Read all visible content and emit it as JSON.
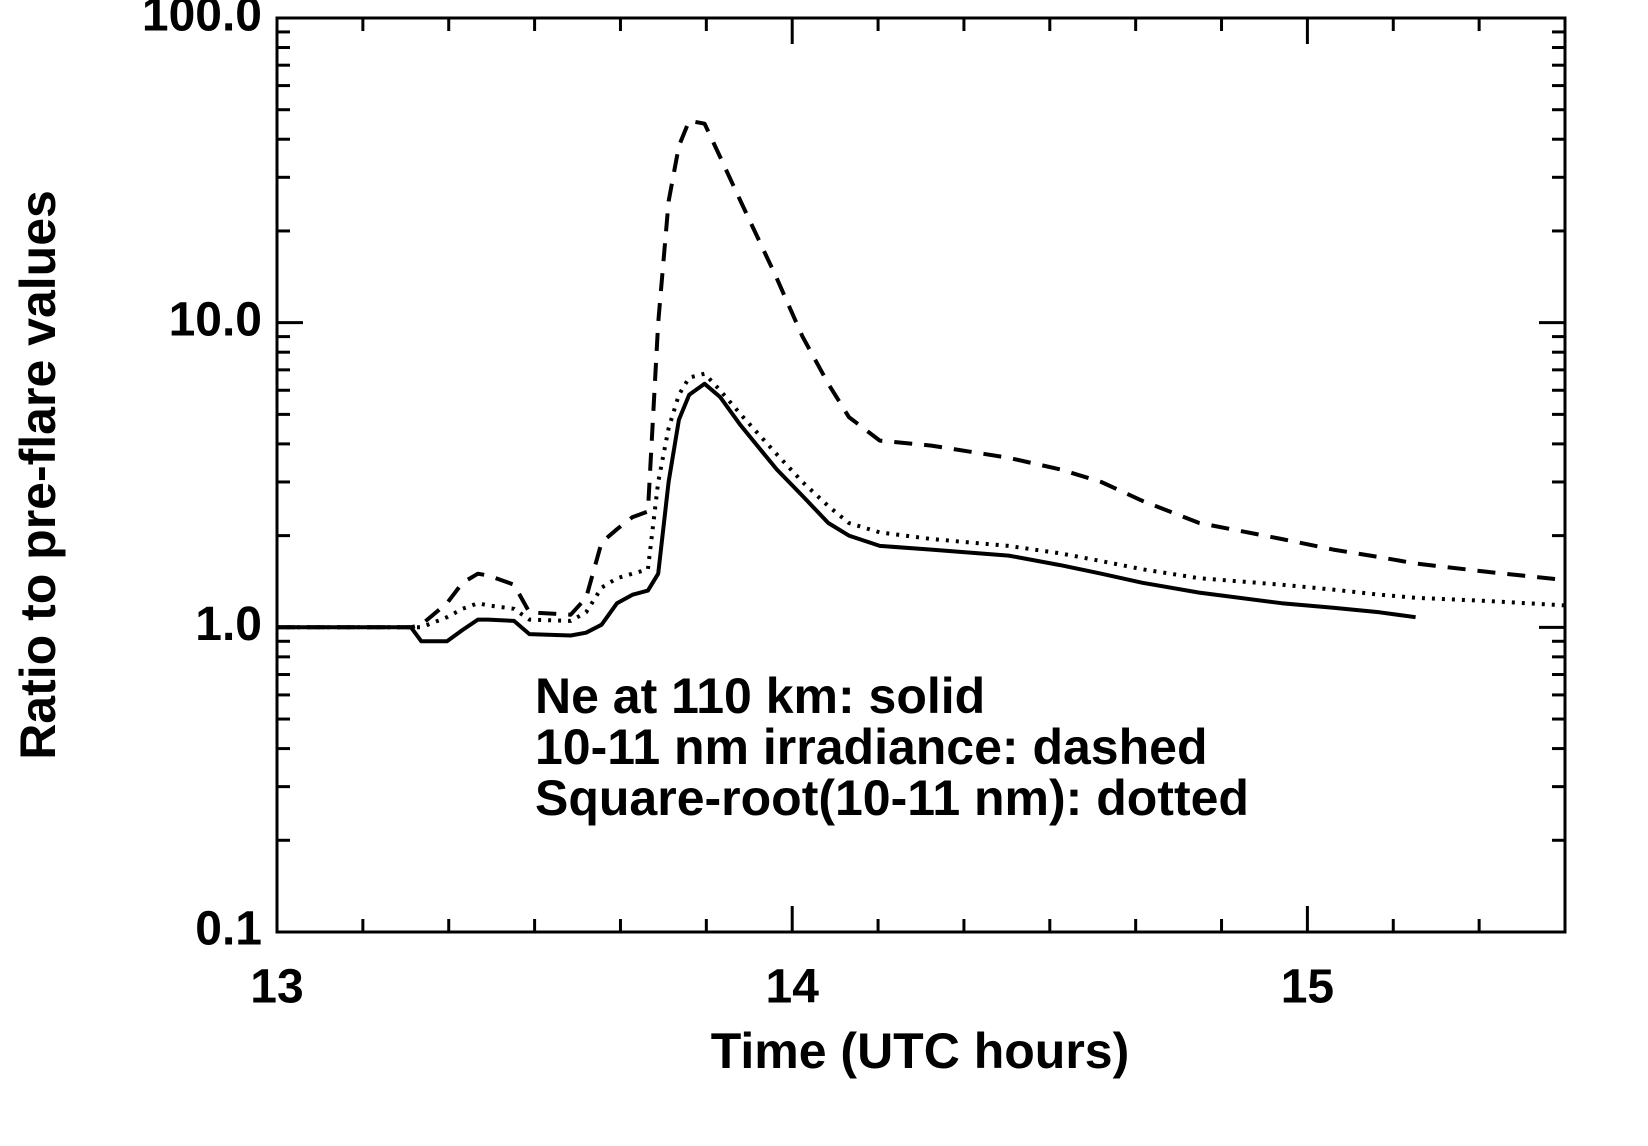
{
  "chart_data": {
    "type": "line",
    "xlabel": "Time (UTC hours)",
    "ylabel": "Ratio to pre-flare values",
    "annotations": [
      "Ne at 110 km: solid",
      "10-11 nm irradiance: dashed",
      "Square-root(10-11 nm): dotted"
    ],
    "log_y": true,
    "xlim": [
      13,
      15.5
    ],
    "xticks": [
      13,
      14,
      15
    ],
    "xminor": 6,
    "ylim": [
      0.1,
      100
    ],
    "yticks": [
      {
        "value": 0.1,
        "label": "0.1"
      },
      {
        "value": 1,
        "label": "1.0"
      },
      {
        "value": 10,
        "label": "10.0"
      },
      {
        "value": 100,
        "label": "100.0"
      }
    ],
    "yminorticks": [
      0.2,
      0.3,
      0.4,
      0.5,
      0.6,
      0.7,
      0.8,
      0.9,
      2,
      3,
      4,
      5,
      6,
      7,
      8,
      9,
      20,
      30,
      40,
      50,
      60,
      70,
      80,
      90
    ],
    "x": [
      13.0,
      13.26,
      13.28,
      13.33,
      13.36,
      13.39,
      13.41,
      13.46,
      13.49,
      13.57,
      13.6,
      13.63,
      13.66,
      13.69,
      13.72,
      13.74,
      13.76,
      13.78,
      13.8,
      13.83,
      13.86,
      13.9,
      13.97,
      14.02,
      14.07,
      14.11,
      14.17,
      14.27,
      14.42,
      14.52,
      14.6,
      14.68,
      14.79,
      14.95,
      15.05,
      15.14,
      15.21,
      15.35,
      15.5
    ],
    "series": [
      {
        "color": "#000000",
        "dash": "solid",
        "values": [
          1.0,
          1.0,
          0.9,
          0.9,
          0.98,
          1.06,
          1.06,
          1.05,
          0.95,
          0.94,
          0.96,
          1.02,
          1.2,
          1.28,
          1.32,
          1.5,
          3.0,
          4.8,
          5.8,
          6.3,
          5.7,
          4.6,
          3.3,
          2.7,
          2.2,
          2.0,
          1.85,
          1.8,
          1.72,
          1.6,
          1.5,
          1.4,
          1.3,
          1.2,
          1.16,
          1.12,
          1.08,
          null,
          null
        ]
      },
      {
        "color": "#000000",
        "dash": "dashed",
        "values": [
          1.0,
          1.0,
          1.02,
          1.2,
          1.4,
          1.5,
          1.48,
          1.38,
          1.12,
          1.1,
          1.25,
          1.9,
          2.1,
          2.3,
          2.4,
          10,
          25,
          38,
          46,
          45,
          35,
          25,
          14,
          9,
          6.3,
          4.9,
          4.1,
          3.95,
          3.6,
          3.3,
          3.0,
          2.6,
          2.2,
          1.95,
          1.8,
          1.7,
          1.62,
          1.52,
          1.43
        ]
      },
      {
        "color": "#000000",
        "dash": "dotted",
        "values": [
          1.0,
          1.0,
          1.0,
          1.08,
          1.15,
          1.2,
          1.18,
          1.15,
          1.06,
          1.05,
          1.12,
          1.35,
          1.45,
          1.5,
          1.55,
          3.0,
          4.5,
          5.8,
          6.6,
          6.8,
          6.0,
          5.0,
          3.7,
          3.0,
          2.5,
          2.2,
          2.05,
          1.95,
          1.85,
          1.75,
          1.65,
          1.55,
          1.45,
          1.38,
          1.33,
          1.28,
          1.25,
          1.22,
          1.18
        ]
      }
    ]
  }
}
